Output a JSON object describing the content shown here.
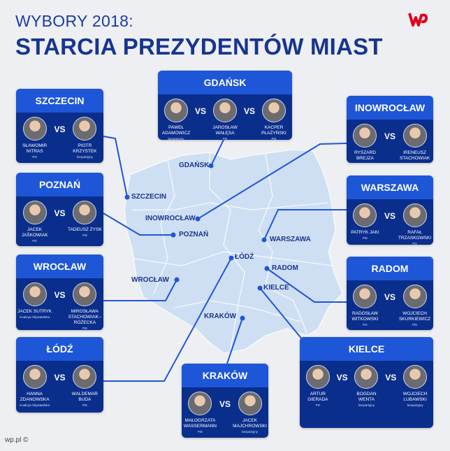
{
  "header": {
    "subtitle": "WYBORY 2018:",
    "title": "STARCIA PREZYDENTÓW MIAST"
  },
  "logo": {
    "name": "wp-logo",
    "color": "#e3001b"
  },
  "colors": {
    "box_header": "#1e56d8",
    "box_body": "#0a2e8c",
    "map": "#cfdff3",
    "line": "#1e56d8"
  },
  "map_labels": [
    "GDAŃSK",
    "SZCZECIN",
    "INOWROCŁAW",
    "POZNAŃ",
    "WARSZAWA",
    "ŁÓDŹ",
    "RADOM",
    "WROCŁAW",
    "KIELCE",
    "KRAKÓW"
  ],
  "boxes": [
    {
      "city": "SZCZECIN",
      "candidates": [
        {
          "name": "SŁAWOMIR NITRAS",
          "party": "PO"
        },
        {
          "name": "PIOTR KRZYSTEK",
          "party": "bezpartyjny"
        }
      ]
    },
    {
      "city": "GDAŃSK",
      "candidates": [
        {
          "name": "PAWEŁ ADAMOWICZ",
          "party": "bezpartyjny"
        },
        {
          "name": "JAROSŁAW WAŁĘSA",
          "party": "PO"
        },
        {
          "name": "KACPER PŁAŻYŃSKI",
          "party": "PiS"
        }
      ]
    },
    {
      "city": "INOWROCŁAW",
      "candidates": [
        {
          "name": "RYSZARD BREJZA",
          "party": "PO"
        },
        {
          "name": "IRENEUSZ STACHOWIAK",
          "party": "PiS"
        }
      ]
    },
    {
      "city": "POZNAŃ",
      "candidates": [
        {
          "name": "JACEK JAŚKOWIAK",
          "party": "PO"
        },
        {
          "name": "TADEUSZ ZYSK",
          "party": "PiS"
        }
      ]
    },
    {
      "city": "WARSZAWA",
      "candidates": [
        {
          "name": "PATRYK JAKI",
          "party": "PiS"
        },
        {
          "name": "RAFAŁ TRZASKOWSKI",
          "party": "PO"
        }
      ]
    },
    {
      "city": "WROCŁAW",
      "candidates": [
        {
          "name": "JACEK SUTRYK",
          "party": "Koalicja Obywatelska"
        },
        {
          "name": "MIROSŁAWA STACHOWIAK--RÓŻECKA",
          "party": "PiS"
        }
      ]
    },
    {
      "city": "RADOM",
      "candidates": [
        {
          "name": "RADOSŁAW WITKOWSKI",
          "party": "PO"
        },
        {
          "name": "WOJCIECH SKURKIEWICZ",
          "party": "PiS"
        }
      ]
    },
    {
      "city": "ŁÓDŹ",
      "candidates": [
        {
          "name": "HANNA ZDANOWSKA",
          "party": "Koalicja Obywatelska"
        },
        {
          "name": "WALDEMAR BUDA",
          "party": "PiS"
        }
      ]
    },
    {
      "city": "KRAKÓW",
      "candidates": [
        {
          "name": "MAŁOGRZATA WASSERMANN",
          "party": "PiS"
        },
        {
          "name": "JACEK MAJCHROWSKI",
          "party": "bezpartyjny"
        }
      ]
    },
    {
      "city": "KIELCE",
      "candidates": [
        {
          "name": "ARTUR GIERADA",
          "party": "PO"
        },
        {
          "name": "BOGDAN WENTA",
          "party": "bezpartyjny"
        },
        {
          "name": "WOJCIECH LUBAWSKI",
          "party": "bezpartyjny"
        }
      ]
    }
  ],
  "vs_label": "VS",
  "footer": "wp.pl ©"
}
